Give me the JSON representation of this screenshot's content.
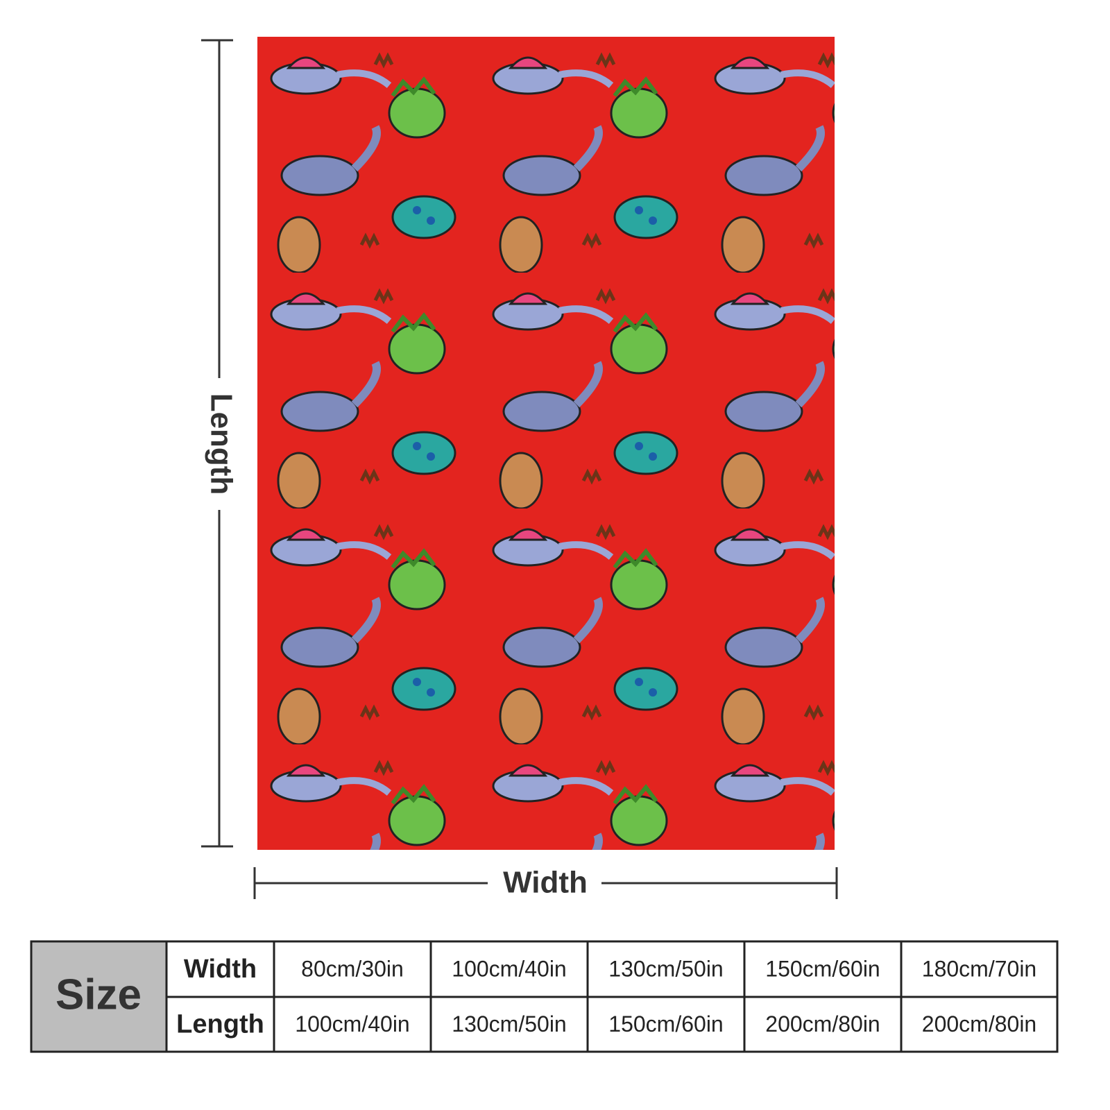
{
  "diagram": {
    "length_label": "Length",
    "width_label": "Width"
  },
  "table": {
    "header": "Size",
    "rows": [
      [
        "Width",
        "80cm/30in",
        "100cm/40in",
        "130cm/50in",
        "150cm/60in",
        "180cm/70in"
      ],
      [
        "Length",
        "100cm/40in",
        "130cm/50in",
        "150cm/60in",
        "200cm/80in",
        "200cm/80in"
      ]
    ]
  }
}
